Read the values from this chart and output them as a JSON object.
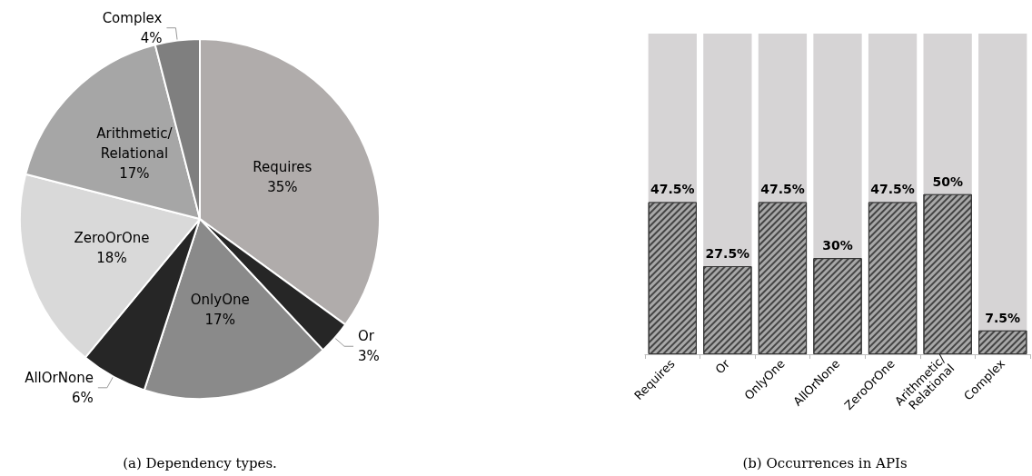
{
  "chart_data": [
    {
      "type": "pie",
      "title": "(a) Dependency types.",
      "categories": [
        "Requires",
        "Or",
        "OnlyOne",
        "AllOrNone",
        "ZeroOrOne",
        "Arithmetic/\nRelational",
        "Complex"
      ],
      "values": [
        35,
        3,
        17,
        6,
        18,
        17,
        4
      ],
      "colors": [
        "#b0acab",
        "#262626",
        "#8a8a8a",
        "#262626",
        "#d9d9d9",
        "#a6a6a6",
        "#7f7f7f"
      ],
      "value_labels": [
        "35%",
        "3%",
        "17%",
        "6%",
        "18%",
        "17%",
        "4%"
      ],
      "legend": false
    },
    {
      "type": "bar",
      "title": "(b) Occurrences in APIs",
      "stacked": true,
      "categories": [
        "Requires",
        "Or",
        "OnlyOne",
        "AllOrNone",
        "ZeroOrOne",
        "Arithmetic/\nRelational",
        "Complex"
      ],
      "series": [
        {
          "color": "#a8a8a8",
          "values": [
            47.5,
            27.5,
            47.5,
            30,
            47.5,
            50,
            7.5
          ],
          "value_labels": [
            "47.5%",
            "27.5%",
            "47.5%",
            "30%",
            "47.5%",
            "50%",
            "7.5%"
          ]
        },
        {
          "color": "#d6d4d5",
          "values": [
            52.5,
            72.5,
            52.5,
            70,
            52.5,
            50,
            92.5
          ]
        }
      ],
      "legend": false
    }
  ]
}
